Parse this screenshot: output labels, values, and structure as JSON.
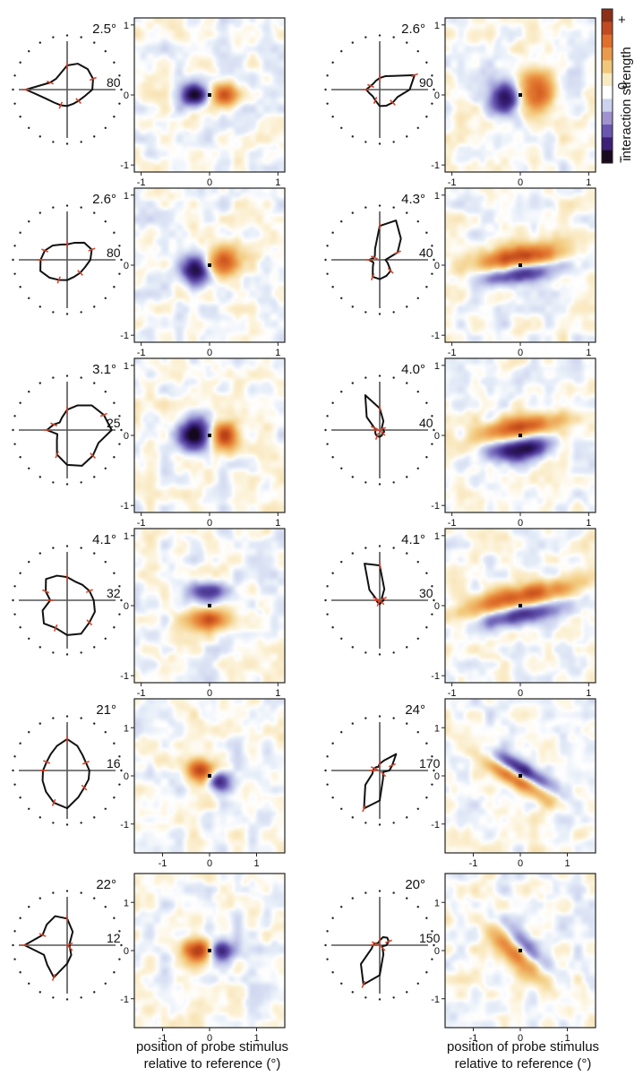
{
  "figure": {
    "panels": [
      {
        "ecc": "2.5°",
        "peak": "80",
        "tuning": [
          0.85,
          0.48,
          0.38,
          0.35,
          0.34,
          0.32,
          0.33,
          0.38,
          0.52,
          0.58,
          0.6,
          0.58,
          0.5,
          0.36,
          0.32,
          0.38
        ],
        "lobes": [
          {
            "ang": 0,
            "amp": 0.9,
            "sx": 0.14,
            "sy": 0.11,
            "dir": 0,
            "sign": 1
          },
          {
            "ang": 180,
            "amp": 1.0,
            "sx": 0.14,
            "sy": 0.11,
            "dir": 0,
            "sign": -1
          }
        ],
        "ticks": [
          -1,
          0,
          1
        ]
      },
      {
        "ecc": "2.6°",
        "peak": "90",
        "tuning": [
          0.28,
          0.22,
          0.2,
          0.24,
          0.34,
          0.36,
          0.38,
          0.4,
          0.62,
          0.78,
          0.4,
          0.3,
          0.24,
          0.2,
          0.18,
          0.2
        ],
        "lobes": [
          {
            "ang": 10,
            "amp": 0.85,
            "sx": 0.17,
            "sy": 0.22,
            "dir": 0,
            "sign": 1
          },
          {
            "ang": 190,
            "amp": 0.9,
            "sx": 0.17,
            "sy": 0.16,
            "dir": 0,
            "sign": -1
          }
        ],
        "ticks": [
          -1,
          0,
          1
        ]
      },
      {
        "ecc": "2.6°",
        "peak": "80",
        "tuning": [
          0.55,
          0.6,
          0.52,
          0.45,
          0.42,
          0.38,
          0.38,
          0.4,
          0.48,
          0.55,
          0.5,
          0.38,
          0.32,
          0.34,
          0.42,
          0.5
        ],
        "lobes": [
          {
            "ang": 20,
            "amp": 0.8,
            "sx": 0.16,
            "sy": 0.16,
            "dir": 0,
            "sign": 1
          },
          {
            "ang": 200,
            "amp": 0.9,
            "sx": 0.15,
            "sy": 0.15,
            "dir": 0,
            "sign": -1
          }
        ],
        "ticks": [
          -1,
          0,
          1
        ]
      },
      {
        "ecc": "4.3°",
        "peak": "40",
        "tuning": [
          0.22,
          0.14,
          0.2,
          0.38,
          0.4,
          0.36,
          0.32,
          0.18,
          0.12,
          0.4,
          0.62,
          0.88,
          0.7,
          0.25,
          0.14,
          0.12
        ],
        "lobes": [
          {
            "ang": 90,
            "amp": 0.95,
            "sx": 0.45,
            "sy": 0.11,
            "dir": 8,
            "sign": 1
          },
          {
            "ang": 270,
            "amp": 0.8,
            "sx": 0.35,
            "sy": 0.1,
            "dir": 8,
            "sign": -1
          }
        ],
        "ticks": [
          -1,
          0,
          1
        ]
      },
      {
        "ecc": "3.1°",
        "peak": "25",
        "tuning": [
          0.42,
          0.22,
          0.3,
          0.55,
          0.72,
          0.8,
          0.75,
          0.7,
          0.92,
          0.82,
          0.72,
          0.55,
          0.42,
          0.28,
          0.22,
          0.3
        ],
        "lobes": [
          {
            "ang": 0,
            "amp": 0.95,
            "sx": 0.14,
            "sy": 0.14,
            "dir": 0,
            "sign": 1
          },
          {
            "ang": 180,
            "amp": 1.1,
            "sx": 0.17,
            "sy": 0.15,
            "dir": 0,
            "sign": -1
          }
        ],
        "ticks": [
          -1,
          0,
          1
        ]
      },
      {
        "ecc": "4.0°",
        "peak": "40",
        "tuning": [
          0.08,
          0.1,
          0.12,
          0.14,
          0.14,
          0.12,
          0.08,
          0.1,
          0.08,
          0.06,
          0.06,
          0.2,
          0.45,
          0.78,
          0.38,
          0.12
        ],
        "lobes": [
          {
            "ang": 90,
            "amp": 0.85,
            "sx": 0.42,
            "sy": 0.1,
            "dir": 10,
            "sign": 1
          },
          {
            "ang": 270,
            "amp": 1.0,
            "sx": 0.28,
            "sy": 0.11,
            "dir": 10,
            "sign": -1
          }
        ],
        "ticks": [
          -1,
          0,
          1
        ]
      },
      {
        "ecc": "4.1°",
        "peak": "32",
        "tuning": [
          0.35,
          0.55,
          0.68,
          0.62,
          0.72,
          0.75,
          0.65,
          0.62,
          0.55,
          0.5,
          0.45,
          0.42,
          0.48,
          0.55,
          0.62,
          0.48
        ],
        "lobes": [
          {
            "ang": 90,
            "amp": 0.7,
            "sx": 0.2,
            "sy": 0.1,
            "dir": 0,
            "sign": -1
          },
          {
            "ang": 270,
            "amp": 0.85,
            "sx": 0.22,
            "sy": 0.1,
            "dir": 0,
            "sign": 1
          }
        ],
        "ticks": [
          -1,
          0,
          1
        ]
      },
      {
        "ecc": "4.1°",
        "peak": "30",
        "tuning": [
          0.05,
          0.06,
          0.06,
          0.06,
          0.08,
          0.06,
          0.05,
          0.06,
          0.08,
          0.08,
          0.06,
          0.25,
          0.72,
          0.82,
          0.3,
          0.08
        ],
        "lobes": [
          {
            "ang": 100,
            "amp": 0.9,
            "sx": 0.55,
            "sy": 0.11,
            "dir": 12,
            "sign": 1
          },
          {
            "ang": 280,
            "amp": 0.7,
            "sx": 0.45,
            "sy": 0.1,
            "dir": 12,
            "sign": -1
          }
        ],
        "ticks": [
          -1,
          0,
          1
        ]
      },
      {
        "ecc": "21°",
        "peak": "16",
        "tuning": [
          0.5,
          0.55,
          0.62,
          0.72,
          0.78,
          0.6,
          0.5,
          0.48,
          0.46,
          0.42,
          0.45,
          0.55,
          0.65,
          0.55,
          0.48,
          0.46
        ],
        "lobes": [
          {
            "ang": 145,
            "amp": 1.0,
            "sx": 0.22,
            "sy": 0.16,
            "dir": -20,
            "sign": 1
          },
          {
            "ang": 330,
            "amp": 0.85,
            "sx": 0.18,
            "sy": 0.14,
            "dir": -20,
            "sign": -1
          }
        ],
        "ticks": [
          -1,
          0,
          1
        ]
      },
      {
        "ecc": "24°",
        "peak": "170",
        "tuning": [
          0.14,
          0.16,
          0.42,
          0.85,
          0.62,
          0.18,
          0.1,
          0.08,
          0.2,
          0.28,
          0.48,
          0.22,
          0.14,
          0.08,
          0.1,
          0.12
        ],
        "lobes": [
          {
            "ang": 215,
            "amp": 0.85,
            "sx": 0.55,
            "sy": 0.12,
            "dir": -30,
            "sign": 1
          },
          {
            "ang": 55,
            "amp": 0.85,
            "sx": 0.45,
            "sy": 0.12,
            "dir": -30,
            "sign": -1
          }
        ],
        "ticks": [
          -1,
          0,
          1
        ]
      },
      {
        "ecc": "22°",
        "peak": "12",
        "tuning": [
          0.88,
          0.52,
          0.58,
          0.72,
          0.38,
          0.22,
          0.08,
          0.05,
          0.06,
          0.05,
          0.08,
          0.3,
          0.55,
          0.65,
          0.6,
          0.55
        ],
        "lobes": [
          {
            "ang": 180,
            "amp": 1.05,
            "sx": 0.24,
            "sy": 0.16,
            "dir": 0,
            "sign": 1
          },
          {
            "ang": 0,
            "amp": 0.95,
            "sx": 0.2,
            "sy": 0.15,
            "dir": 0,
            "sign": -1
          }
        ],
        "ticks": [
          -1,
          0,
          1
        ]
      },
      {
        "ecc": "20°",
        "peak": "150",
        "tuning": [
          0.14,
          0.18,
          0.55,
          0.88,
          0.62,
          0.2,
          0.08,
          0.06,
          0.14,
          0.2,
          0.22,
          0.18,
          0.1,
          0.06,
          0.06,
          0.1
        ],
        "lobes": [
          {
            "ang": 210,
            "amp": 0.9,
            "sx": 0.5,
            "sy": 0.17,
            "dir": -45,
            "sign": 1
          },
          {
            "ang": 30,
            "amp": 0.75,
            "sx": 0.4,
            "sy": 0.15,
            "dir": -45,
            "sign": -1
          }
        ],
        "ticks": [
          -1,
          0,
          1
        ]
      }
    ],
    "xlabel_line1": "position of probe stimulus",
    "xlabel_line2": "relative to reference (°)",
    "colorbar": {
      "label": "interaction strength",
      "plus": "+",
      "zero": "0",
      "minus": "−",
      "colors": [
        "#1a0a1e",
        "#3b1f78",
        "#6a56b0",
        "#9f92cf",
        "#ccd3ee",
        "#ffffff",
        "#f8ebc2",
        "#f0c77b",
        "#ea9a4c",
        "#df6f2b",
        "#c24a20",
        "#8c3018"
      ]
    }
  }
}
